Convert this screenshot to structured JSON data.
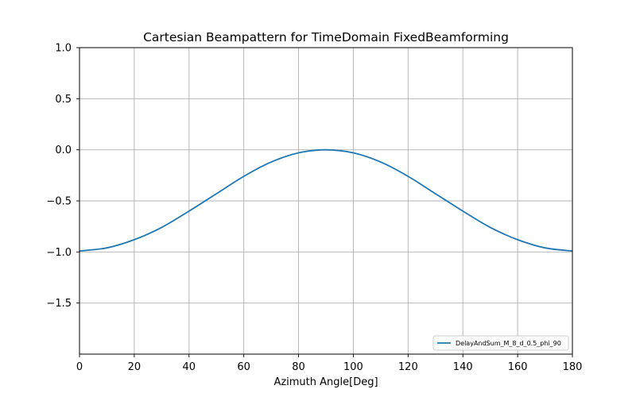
{
  "chart_data": {
    "type": "line",
    "title": "Cartesian Beampattern for TimeDomain FixedBeamforming",
    "xlabel": "Azimuth Angle[Deg]",
    "ylabel": "",
    "xlim": [
      0,
      180
    ],
    "ylim": [
      -2.0,
      1.0
    ],
    "x_ticks": [
      0,
      20,
      40,
      60,
      80,
      100,
      120,
      140,
      160,
      180
    ],
    "x_tick_labels": [
      "0",
      "20",
      "40",
      "60",
      "80",
      "100",
      "120",
      "140",
      "160",
      "180"
    ],
    "y_ticks": [
      1.0,
      0.5,
      0.0,
      -0.5,
      -1.0,
      -1.5
    ],
    "y_tick_labels": [
      "1.0",
      "0.5",
      "0.0",
      "−0.5",
      "−1.0",
      "−1.5"
    ],
    "grid": true,
    "legend_position": "lower-right",
    "series": [
      {
        "name": "DelayAndSum_M_8_d_0.5_phi_90",
        "color": "#1f77b4",
        "x": [
          0,
          10,
          20,
          30,
          40,
          50,
          60,
          70,
          80,
          90,
          100,
          110,
          120,
          130,
          140,
          150,
          160,
          170,
          180
        ],
        "y": [
          -0.99,
          -0.96,
          -0.88,
          -0.76,
          -0.6,
          -0.43,
          -0.26,
          -0.12,
          -0.03,
          0.0,
          -0.03,
          -0.12,
          -0.26,
          -0.43,
          -0.6,
          -0.76,
          -0.88,
          -0.96,
          -0.99
        ]
      }
    ]
  }
}
